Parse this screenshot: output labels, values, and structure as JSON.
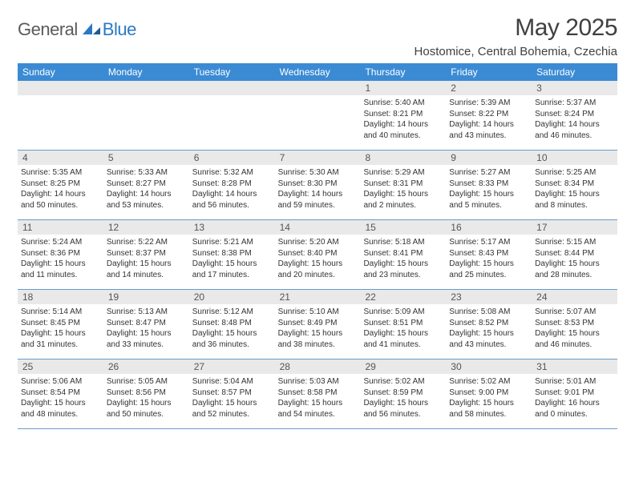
{
  "logo": {
    "general": "General",
    "blue": "Blue"
  },
  "title": "May 2025",
  "location": "Hostomice, Central Bohemia, Czechia",
  "colors": {
    "header_bg": "#3b8bd4",
    "header_text": "#ffffff",
    "num_bg": "#e9e9e9",
    "rule": "#6b9bc8",
    "logo_blue": "#2b78c5",
    "logo_gray": "#5a5a5a",
    "body_text": "#333333"
  },
  "day_names": [
    "Sunday",
    "Monday",
    "Tuesday",
    "Wednesday",
    "Thursday",
    "Friday",
    "Saturday"
  ],
  "weeks": [
    [
      null,
      null,
      null,
      null,
      {
        "n": "1",
        "sr": "5:40 AM",
        "ss": "8:21 PM",
        "dl": "14 hours and 40 minutes."
      },
      {
        "n": "2",
        "sr": "5:39 AM",
        "ss": "8:22 PM",
        "dl": "14 hours and 43 minutes."
      },
      {
        "n": "3",
        "sr": "5:37 AM",
        "ss": "8:24 PM",
        "dl": "14 hours and 46 minutes."
      }
    ],
    [
      {
        "n": "4",
        "sr": "5:35 AM",
        "ss": "8:25 PM",
        "dl": "14 hours and 50 minutes."
      },
      {
        "n": "5",
        "sr": "5:33 AM",
        "ss": "8:27 PM",
        "dl": "14 hours and 53 minutes."
      },
      {
        "n": "6",
        "sr": "5:32 AM",
        "ss": "8:28 PM",
        "dl": "14 hours and 56 minutes."
      },
      {
        "n": "7",
        "sr": "5:30 AM",
        "ss": "8:30 PM",
        "dl": "14 hours and 59 minutes."
      },
      {
        "n": "8",
        "sr": "5:29 AM",
        "ss": "8:31 PM",
        "dl": "15 hours and 2 minutes."
      },
      {
        "n": "9",
        "sr": "5:27 AM",
        "ss": "8:33 PM",
        "dl": "15 hours and 5 minutes."
      },
      {
        "n": "10",
        "sr": "5:25 AM",
        "ss": "8:34 PM",
        "dl": "15 hours and 8 minutes."
      }
    ],
    [
      {
        "n": "11",
        "sr": "5:24 AM",
        "ss": "8:36 PM",
        "dl": "15 hours and 11 minutes."
      },
      {
        "n": "12",
        "sr": "5:22 AM",
        "ss": "8:37 PM",
        "dl": "15 hours and 14 minutes."
      },
      {
        "n": "13",
        "sr": "5:21 AM",
        "ss": "8:38 PM",
        "dl": "15 hours and 17 minutes."
      },
      {
        "n": "14",
        "sr": "5:20 AM",
        "ss": "8:40 PM",
        "dl": "15 hours and 20 minutes."
      },
      {
        "n": "15",
        "sr": "5:18 AM",
        "ss": "8:41 PM",
        "dl": "15 hours and 23 minutes."
      },
      {
        "n": "16",
        "sr": "5:17 AM",
        "ss": "8:43 PM",
        "dl": "15 hours and 25 minutes."
      },
      {
        "n": "17",
        "sr": "5:15 AM",
        "ss": "8:44 PM",
        "dl": "15 hours and 28 minutes."
      }
    ],
    [
      {
        "n": "18",
        "sr": "5:14 AM",
        "ss": "8:45 PM",
        "dl": "15 hours and 31 minutes."
      },
      {
        "n": "19",
        "sr": "5:13 AM",
        "ss": "8:47 PM",
        "dl": "15 hours and 33 minutes."
      },
      {
        "n": "20",
        "sr": "5:12 AM",
        "ss": "8:48 PM",
        "dl": "15 hours and 36 minutes."
      },
      {
        "n": "21",
        "sr": "5:10 AM",
        "ss": "8:49 PM",
        "dl": "15 hours and 38 minutes."
      },
      {
        "n": "22",
        "sr": "5:09 AM",
        "ss": "8:51 PM",
        "dl": "15 hours and 41 minutes."
      },
      {
        "n": "23",
        "sr": "5:08 AM",
        "ss": "8:52 PM",
        "dl": "15 hours and 43 minutes."
      },
      {
        "n": "24",
        "sr": "5:07 AM",
        "ss": "8:53 PM",
        "dl": "15 hours and 46 minutes."
      }
    ],
    [
      {
        "n": "25",
        "sr": "5:06 AM",
        "ss": "8:54 PM",
        "dl": "15 hours and 48 minutes."
      },
      {
        "n": "26",
        "sr": "5:05 AM",
        "ss": "8:56 PM",
        "dl": "15 hours and 50 minutes."
      },
      {
        "n": "27",
        "sr": "5:04 AM",
        "ss": "8:57 PM",
        "dl": "15 hours and 52 minutes."
      },
      {
        "n": "28",
        "sr": "5:03 AM",
        "ss": "8:58 PM",
        "dl": "15 hours and 54 minutes."
      },
      {
        "n": "29",
        "sr": "5:02 AM",
        "ss": "8:59 PM",
        "dl": "15 hours and 56 minutes."
      },
      {
        "n": "30",
        "sr": "5:02 AM",
        "ss": "9:00 PM",
        "dl": "15 hours and 58 minutes."
      },
      {
        "n": "31",
        "sr": "5:01 AM",
        "ss": "9:01 PM",
        "dl": "16 hours and 0 minutes."
      }
    ]
  ],
  "labels": {
    "sunrise": "Sunrise:",
    "sunset": "Sunset:",
    "daylight": "Daylight:"
  }
}
